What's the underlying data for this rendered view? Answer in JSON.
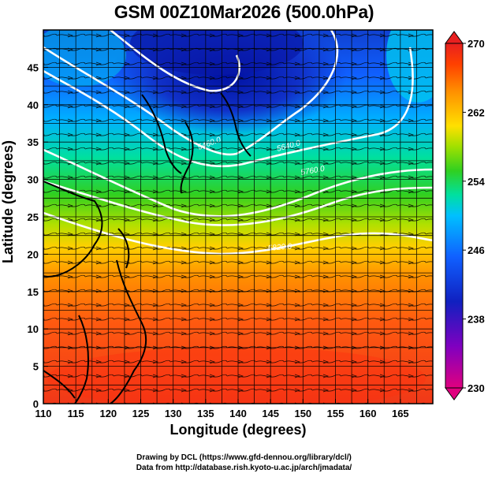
{
  "title": "GSM 00Z10Mar2026 (500.0hPa)",
  "axes": {
    "xlabel": "Longitude (degrees)",
    "ylabel": "Latitude  (degrees)",
    "xticks": [
      "110",
      "115",
      "120",
      "125",
      "130",
      "135",
      "140",
      "145",
      "150",
      "155",
      "160",
      "165"
    ],
    "yticks": [
      "0",
      "5",
      "10",
      "15",
      "20",
      "25",
      "30",
      "35",
      "40",
      "45"
    ],
    "xlim": [
      110,
      170
    ],
    "ylim": [
      0,
      50
    ]
  },
  "colorbar": {
    "labels": [
      "270",
      "262",
      "254",
      "246",
      "238",
      "230"
    ],
    "range": [
      230,
      270
    ],
    "colors": [
      "#e0007f",
      "#8000c0",
      "#1020c0",
      "#1060ff",
      "#00c0ff",
      "#00e0a0",
      "#30d020",
      "#a0e000",
      "#ffe000",
      "#ff9000",
      "#ff4000",
      "#e82020"
    ]
  },
  "contours": {
    "labels": [
      "5460.0",
      "5640.0",
      "5760.0",
      "5820.0"
    ]
  },
  "credits": {
    "line1": "Drawing by DCL (https://www.gfd-dennou.org/library/dcl/)",
    "line2": "Data from http://database.rish.kyoto-u.ac.jp/arch/jmadata/"
  }
}
